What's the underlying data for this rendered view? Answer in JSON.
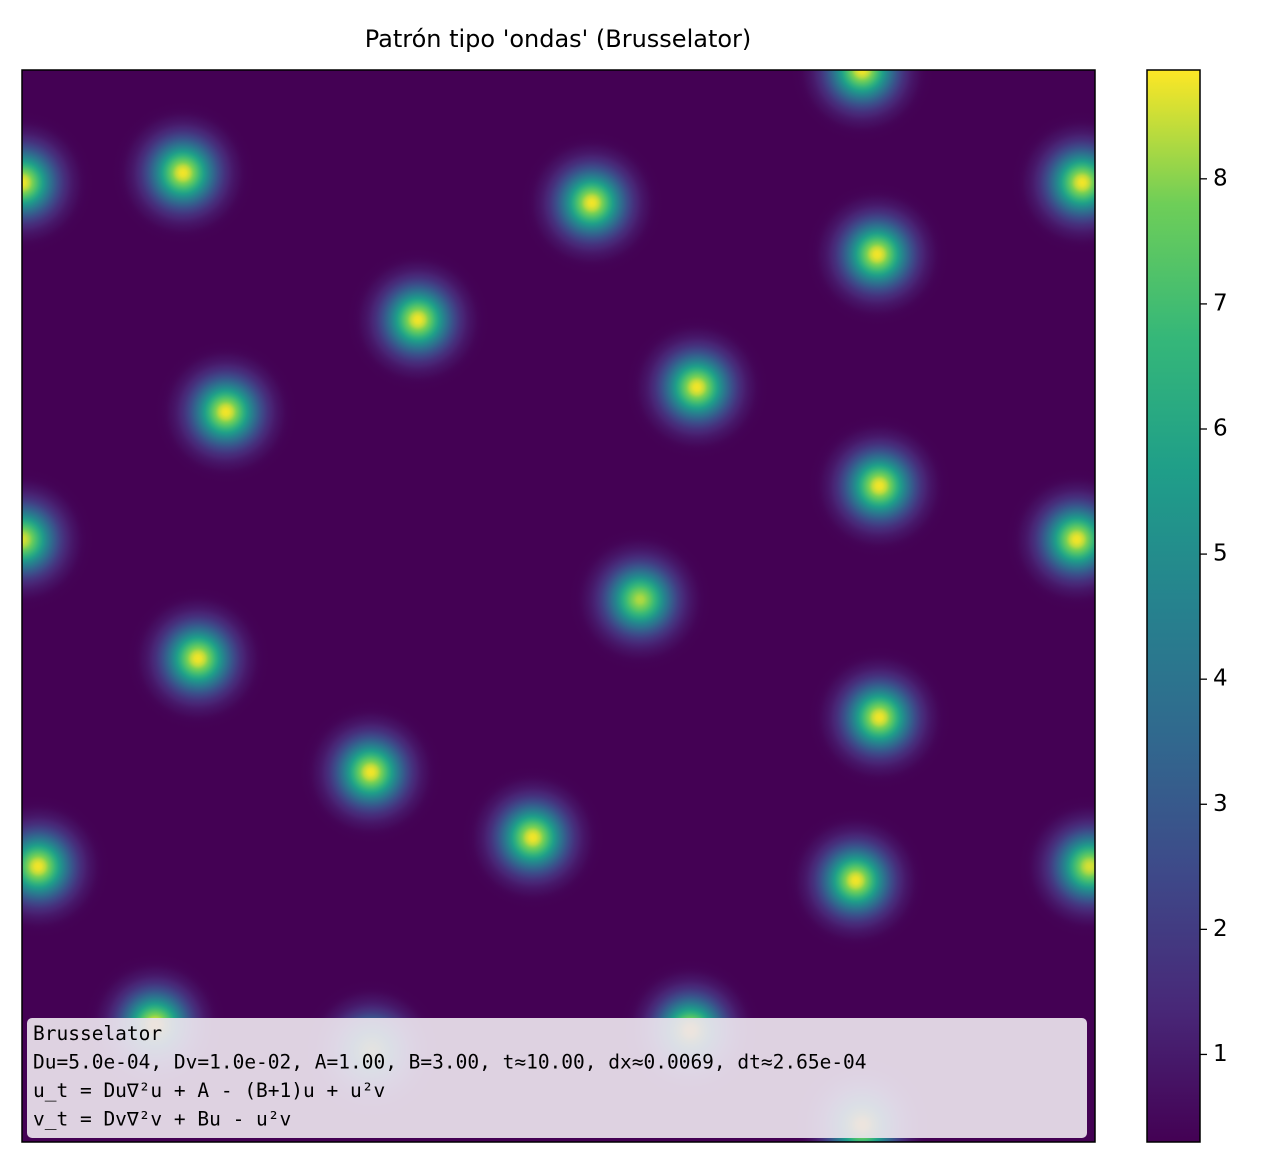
{
  "chart_data": {
    "type": "heatmap",
    "title": "Patrón tipo 'ondas' (Brusselator)",
    "xlim": [
      0,
      1
    ],
    "ylim": [
      0,
      1
    ],
    "clim": [
      0.3,
      8.87
    ],
    "cbar_ticks": [
      1,
      2,
      3,
      4,
      5,
      6,
      7,
      8
    ],
    "peaks": [
      {
        "x": 0.783,
        "y": 1.0,
        "value": 8.8
      },
      {
        "x": 0.15,
        "y": 0.904,
        "value": 8.8
      },
      {
        "x": 0.0,
        "y": 0.895,
        "value": 8.8
      },
      {
        "x": 0.988,
        "y": 0.895,
        "value": 8.8
      },
      {
        "x": 0.531,
        "y": 0.876,
        "value": 8.8
      },
      {
        "x": 0.797,
        "y": 0.828,
        "value": 8.8
      },
      {
        "x": 0.369,
        "y": 0.767,
        "value": 8.8
      },
      {
        "x": 0.629,
        "y": 0.704,
        "value": 8.8
      },
      {
        "x": 0.19,
        "y": 0.681,
        "value": 8.8
      },
      {
        "x": 0.799,
        "y": 0.612,
        "value": 8.8
      },
      {
        "x": 0.0,
        "y": 0.562,
        "value": 8.6
      },
      {
        "x": 0.983,
        "y": 0.562,
        "value": 8.8
      },
      {
        "x": 0.576,
        "y": 0.506,
        "value": 8.3
      },
      {
        "x": 0.164,
        "y": 0.451,
        "value": 8.8
      },
      {
        "x": 0.799,
        "y": 0.396,
        "value": 8.8
      },
      {
        "x": 0.325,
        "y": 0.345,
        "value": 8.8
      },
      {
        "x": 0.476,
        "y": 0.284,
        "value": 8.8
      },
      {
        "x": 0.015,
        "y": 0.257,
        "value": 8.8
      },
      {
        "x": 0.995,
        "y": 0.257,
        "value": 8.6
      },
      {
        "x": 0.777,
        "y": 0.244,
        "value": 8.8
      },
      {
        "x": 0.124,
        "y": 0.109,
        "value": 8.8
      },
      {
        "x": 0.623,
        "y": 0.104,
        "value": 8.8
      },
      {
        "x": 0.326,
        "y": 0.085,
        "value": 8.0
      },
      {
        "x": 0.783,
        "y": 0.016,
        "value": 8.8
      }
    ],
    "annotation": [
      "Brusselator",
      "Du=5.0e-04, Dv=1.0e-02, A=1.00, B=3.00, t≈10.00, dx≈0.0069, dt≈2.65e-04",
      "u_t = Du∇²u + A - (B+1)u + u²v",
      "v_t = Dv∇²v + Bu - u²v"
    ]
  }
}
